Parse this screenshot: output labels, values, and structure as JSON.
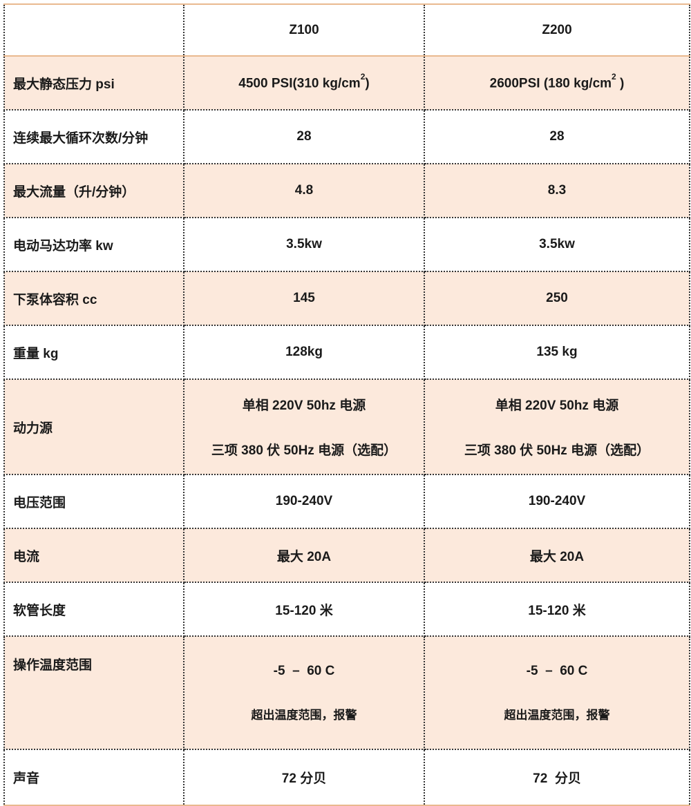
{
  "header": {
    "corner": "",
    "cols": [
      "Z100",
      "Z200"
    ]
  },
  "rows": [
    {
      "label": "最大静态压力 psi",
      "z100": [
        "4500 PSI(310 kg/cm",
        "2",
        ")"
      ],
      "z200": [
        "2600PSI (180 kg/cm",
        "2",
        " )"
      ]
    },
    {
      "label": "连续最大循环次数/分钟",
      "z100": "28",
      "z200": "28"
    },
    {
      "label": "最大流量（升/分钟）",
      "z100": "4.8",
      "z200": "8.3"
    },
    {
      "label": "电动马达功率 kw",
      "z100": "3.5kw",
      "z200": "3.5kw"
    },
    {
      "label": "下泵体容积 cc",
      "z100": "145",
      "z200": "250"
    },
    {
      "label": "重量 kg",
      "z100": "128kg",
      "z200": "135 kg"
    },
    {
      "label": "动力源",
      "z100": [
        "单相 220V 50hz 电源",
        "三项 380 伏 50Hz 电源（选配）"
      ],
      "z200": [
        "单相 220V 50hz 电源",
        "三项 380 伏 50Hz 电源（选配）"
      ]
    },
    {
      "label": "电压范围",
      "z100": "190-240V",
      "z200": "190-240V"
    },
    {
      "label": "电流",
      "z100": "最大 20A",
      "z200": "最大 20A"
    },
    {
      "label": "软管长度",
      "z100": "15-120 米",
      "z200": "15-120 米"
    },
    {
      "label": "操作温度范围",
      "z100": [
        "-5  –  60 C",
        "超出温度范围，报警"
      ],
      "z200": [
        "-5  –  60 C",
        "超出温度范围，报警"
      ]
    },
    {
      "label": "声音",
      "z100": "72 分贝",
      "z200": "72  分贝"
    }
  ],
  "colors": {
    "peach": "#fce9dc",
    "accent_line": "#e9b98f"
  }
}
